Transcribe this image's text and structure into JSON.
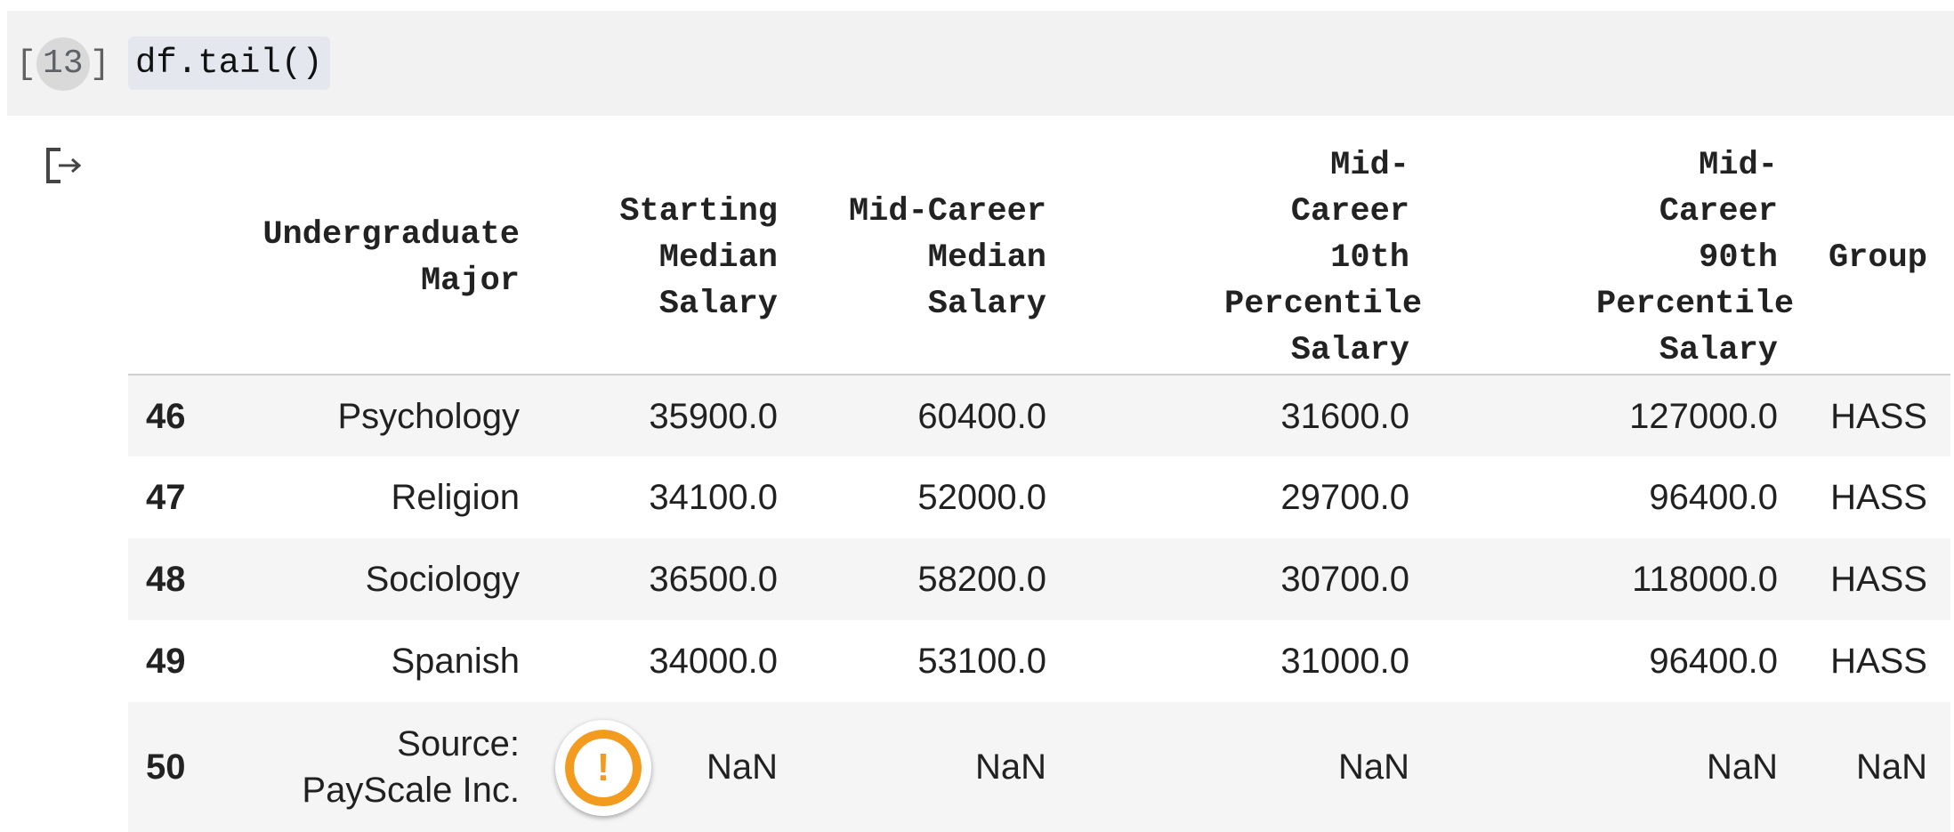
{
  "cell": {
    "execution_count": "13",
    "bracket_open": "[",
    "bracket_close": "]",
    "code": "df.tail()"
  },
  "output": {
    "icon": "output-arrow-icon",
    "columns": [
      "",
      "Undergraduate Major",
      "Starting Median Salary",
      "Mid-Career Median Salary",
      "Mid-Career 10th Percentile Salary",
      "Mid-Career 90th Percentile Salary",
      "Group"
    ],
    "rows": [
      {
        "index": "46",
        "major": "Psychology",
        "start": "35900.0",
        "mid": "60400.0",
        "p10": "31600.0",
        "p90": "127000.0",
        "group": "HASS"
      },
      {
        "index": "47",
        "major": "Religion",
        "start": "34100.0",
        "mid": "52000.0",
        "p10": "29700.0",
        "p90": "96400.0",
        "group": "HASS"
      },
      {
        "index": "48",
        "major": "Sociology",
        "start": "36500.0",
        "mid": "58200.0",
        "p10": "30700.0",
        "p90": "118000.0",
        "group": "HASS"
      },
      {
        "index": "49",
        "major": "Spanish",
        "start": "34000.0",
        "mid": "53100.0",
        "p10": "31000.0",
        "p90": "96400.0",
        "group": "HASS"
      },
      {
        "index": "50",
        "major": "Source: PayScale Inc.",
        "start": "NaN",
        "mid": "NaN",
        "p10": "NaN",
        "p90": "NaN",
        "group": "NaN"
      }
    ],
    "warning": {
      "icon": "warning-icon",
      "glyph": "!",
      "color": "#f29b1f"
    }
  }
}
